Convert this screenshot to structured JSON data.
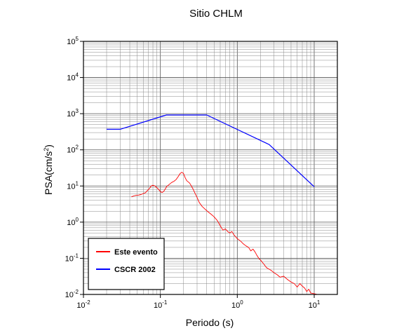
{
  "chart_data": {
    "type": "line",
    "title": "Sitio CHLM",
    "xlabel": "Periodo (s)",
    "ylabel_parts": [
      "PSA(cm/s",
      "2",
      ")"
    ],
    "xscale": "log",
    "yscale": "log",
    "xlim": [
      0.01,
      20
    ],
    "ylim": [
      0.01,
      100000
    ],
    "grid": true,
    "legend_position": "bottom-left",
    "x_ticks": [
      {
        "value": 0.01,
        "base": "10",
        "exp": "-2"
      },
      {
        "value": 0.1,
        "base": "10",
        "exp": "-1"
      },
      {
        "value": 1,
        "base": "10",
        "exp": "0"
      },
      {
        "value": 10,
        "base": "10",
        "exp": "1"
      }
    ],
    "y_ticks": [
      {
        "value": 0.01,
        "base": "10",
        "exp": "-2"
      },
      {
        "value": 0.1,
        "base": "10",
        "exp": "-1"
      },
      {
        "value": 1,
        "base": "10",
        "exp": "0"
      },
      {
        "value": 10,
        "base": "10",
        "exp": "1"
      },
      {
        "value": 100,
        "base": "10",
        "exp": "2"
      },
      {
        "value": 1000,
        "base": "10",
        "exp": "3"
      },
      {
        "value": 10000,
        "base": "10",
        "exp": "4"
      },
      {
        "value": 100000,
        "base": "10",
        "exp": "5"
      }
    ],
    "series": [
      {
        "name": "Este evento",
        "color": "#ff0000",
        "points": [
          [
            0.042,
            5.0
          ],
          [
            0.045,
            5.3
          ],
          [
            0.048,
            5.5
          ],
          [
            0.052,
            5.6
          ],
          [
            0.056,
            5.8
          ],
          [
            0.06,
            6.2
          ],
          [
            0.064,
            6.5
          ],
          [
            0.068,
            7.5
          ],
          [
            0.072,
            8.5
          ],
          [
            0.076,
            10.0
          ],
          [
            0.08,
            10.5
          ],
          [
            0.085,
            10.0
          ],
          [
            0.09,
            9.0
          ],
          [
            0.095,
            8.0
          ],
          [
            0.1,
            7.0
          ],
          [
            0.105,
            6.6
          ],
          [
            0.11,
            7.0
          ],
          [
            0.115,
            8.0
          ],
          [
            0.12,
            9.5
          ],
          [
            0.13,
            11.0
          ],
          [
            0.14,
            12.5
          ],
          [
            0.15,
            13.5
          ],
          [
            0.16,
            15.0
          ],
          [
            0.17,
            18.0
          ],
          [
            0.18,
            22.0
          ],
          [
            0.19,
            24.0
          ],
          [
            0.2,
            22.0
          ],
          [
            0.21,
            17.0
          ],
          [
            0.22,
            14.0
          ],
          [
            0.24,
            12.0
          ],
          [
            0.26,
            9.0
          ],
          [
            0.28,
            6.5
          ],
          [
            0.3,
            4.8
          ],
          [
            0.32,
            3.5
          ],
          [
            0.35,
            2.7
          ],
          [
            0.38,
            2.3
          ],
          [
            0.42,
            1.9
          ],
          [
            0.45,
            1.7
          ],
          [
            0.5,
            1.4
          ],
          [
            0.55,
            1.1
          ],
          [
            0.6,
            0.8
          ],
          [
            0.65,
            0.6
          ],
          [
            0.7,
            0.65
          ],
          [
            0.75,
            0.55
          ],
          [
            0.8,
            0.5
          ],
          [
            0.85,
            0.55
          ],
          [
            0.9,
            0.45
          ],
          [
            1.0,
            0.35
          ],
          [
            1.1,
            0.3
          ],
          [
            1.2,
            0.25
          ],
          [
            1.3,
            0.22
          ],
          [
            1.4,
            0.2
          ],
          [
            1.5,
            0.16
          ],
          [
            1.6,
            0.18
          ],
          [
            1.7,
            0.15
          ],
          [
            1.8,
            0.12
          ],
          [
            1.9,
            0.1
          ],
          [
            2.0,
            0.09
          ],
          [
            2.2,
            0.07
          ],
          [
            2.4,
            0.055
          ],
          [
            2.6,
            0.05
          ],
          [
            2.8,
            0.045
          ],
          [
            3.0,
            0.04
          ],
          [
            3.3,
            0.035
          ],
          [
            3.6,
            0.03
          ],
          [
            4.0,
            0.032
          ],
          [
            4.3,
            0.028
          ],
          [
            4.6,
            0.025
          ],
          [
            5.0,
            0.022
          ],
          [
            5.5,
            0.02
          ],
          [
            6.0,
            0.016
          ],
          [
            6.5,
            0.02
          ],
          [
            7.0,
            0.017
          ],
          [
            7.5,
            0.015
          ],
          [
            8.0,
            0.012
          ],
          [
            8.5,
            0.014
          ],
          [
            9.0,
            0.011
          ],
          [
            10.0,
            0.0105
          ],
          [
            11.0,
            0.01
          ]
        ]
      },
      {
        "name": "CSCR 2002",
        "color": "#0000ff",
        "points": [
          [
            0.02,
            370
          ],
          [
            0.03,
            370
          ],
          [
            0.12,
            920
          ],
          [
            0.4,
            920
          ],
          [
            2.6,
            140
          ],
          [
            10.0,
            9.5
          ]
        ]
      }
    ]
  }
}
